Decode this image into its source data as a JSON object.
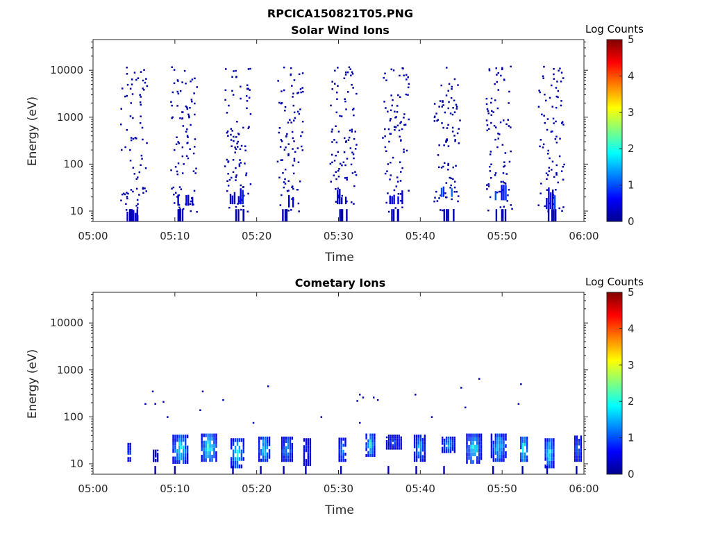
{
  "figure": {
    "title": "RPCICA150821T05.PNG"
  },
  "colormap": [
    "#00008f",
    "#0000ff",
    "#0080ff",
    "#00ffff",
    "#80ff80",
    "#ffff00",
    "#ff8000",
    "#ff0000",
    "#800000"
  ],
  "chart_data": [
    {
      "type": "heatmap",
      "title": "Solar Wind Ions",
      "xlabel": "Time",
      "ylabel": "Energy (eV)",
      "x_ticks": [
        "05:00",
        "05:10",
        "05:20",
        "05:30",
        "05:40",
        "05:50",
        "06:00"
      ],
      "x_tick_minutes": [
        0,
        10,
        20,
        30,
        40,
        50,
        60
      ],
      "xlim_minutes": [
        0,
        60
      ],
      "y_scale": "log",
      "y_ticks": [
        "10",
        "100",
        "1000",
        "10000"
      ],
      "y_tick_values": [
        10,
        100,
        1000,
        10000
      ],
      "ylim": [
        6,
        45000
      ],
      "colorbar": {
        "label": "Log Counts",
        "range": [
          0,
          5
        ],
        "ticks": [
          "0",
          "1",
          "2",
          "3",
          "4",
          "5"
        ]
      },
      "bursts": [
        {
          "t": 4.9,
          "n": 26,
          "seed": 11
        },
        {
          "t": 11.0,
          "n": 30,
          "seed": 23
        },
        {
          "t": 17.6,
          "n": 30,
          "seed": 37
        },
        {
          "t": 24.0,
          "n": 30,
          "seed": 41
        },
        {
          "t": 30.5,
          "n": 30,
          "seed": 53
        },
        {
          "t": 36.9,
          "n": 28,
          "seed": 67
        },
        {
          "t": 43.2,
          "n": 30,
          "seed": 71
        },
        {
          "t": 49.6,
          "n": 28,
          "seed": 83
        },
        {
          "t": 55.9,
          "n": 28,
          "seed": 97
        }
      ],
      "low_energy_blocks": [
        {
          "t0": 4.1,
          "t1": 5.5,
          "e0": 6,
          "e1": 11,
          "level": 0.3
        },
        {
          "t0": 10.3,
          "t1": 12.4,
          "e0": 13,
          "e1": 28,
          "level": 0.4
        },
        {
          "t0": 16.7,
          "t1": 18.5,
          "e0": 14,
          "e1": 33,
          "level": 0.5
        },
        {
          "t0": 23.1,
          "t1": 24.6,
          "e0": 12,
          "e1": 22,
          "level": 0.4
        },
        {
          "t0": 29.8,
          "t1": 31.0,
          "e0": 14,
          "e1": 30,
          "level": 0.4
        },
        {
          "t0": 36.2,
          "t1": 37.8,
          "e0": 14,
          "e1": 33,
          "level": 0.4
        },
        {
          "t0": 42.5,
          "t1": 44.0,
          "e0": 20,
          "e1": 38,
          "level": 0.8
        },
        {
          "t0": 49.1,
          "t1": 50.4,
          "e0": 17,
          "e1": 38,
          "level": 0.7
        },
        {
          "t0": 55.1,
          "t1": 56.6,
          "e0": 11,
          "e1": 42,
          "level": 0.7
        }
      ]
    },
    {
      "type": "heatmap",
      "title": "Cometary Ions",
      "xlabel": "Time",
      "ylabel": "Energy (eV)",
      "x_ticks": [
        "05:00",
        "05:10",
        "05:20",
        "05:30",
        "05:40",
        "05:50",
        "06:00"
      ],
      "x_tick_minutes": [
        0,
        10,
        20,
        30,
        40,
        50,
        60
      ],
      "xlim_minutes": [
        0,
        60
      ],
      "y_scale": "log",
      "y_ticks": [
        "10",
        "100",
        "1000",
        "10000"
      ],
      "y_tick_values": [
        10,
        100,
        1000,
        10000
      ],
      "ylim": [
        6,
        45000
      ],
      "colorbar": {
        "label": "Log Counts",
        "range": [
          0,
          5
        ],
        "ticks": [
          "0",
          "1",
          "2",
          "3",
          "4",
          "5"
        ]
      },
      "blobs": [
        {
          "t0": 4.2,
          "t1": 4.8,
          "e0": 11,
          "e1": 28,
          "peak": 1.2
        },
        {
          "t0": 7.3,
          "t1": 8.1,
          "e0": 11,
          "e1": 20,
          "peak": 0.3
        },
        {
          "t0": 9.7,
          "t1": 11.7,
          "e0": 10,
          "e1": 42,
          "peak": 2.0
        },
        {
          "t0": 13.2,
          "t1": 15.3,
          "e0": 11,
          "e1": 44,
          "peak": 2.1
        },
        {
          "t0": 16.8,
          "t1": 18.5,
          "e0": 8,
          "e1": 35,
          "peak": 2.0
        },
        {
          "t0": 20.2,
          "t1": 21.8,
          "e0": 11,
          "e1": 38,
          "peak": 1.9
        },
        {
          "t0": 23.0,
          "t1": 24.4,
          "e0": 11,
          "e1": 38,
          "peak": 1.6
        },
        {
          "t0": 25.7,
          "t1": 26.7,
          "e0": 9,
          "e1": 35,
          "peak": 1.0
        },
        {
          "t0": 30.0,
          "t1": 30.9,
          "e0": 11,
          "e1": 36,
          "peak": 1.5
        },
        {
          "t0": 33.3,
          "t1": 34.6,
          "e0": 14,
          "e1": 44,
          "peak": 1.9
        },
        {
          "t0": 35.8,
          "t1": 37.8,
          "e0": 20,
          "e1": 42,
          "peak": 1.0
        },
        {
          "t0": 39.2,
          "t1": 40.6,
          "e0": 11,
          "e1": 42,
          "peak": 1.6
        },
        {
          "t0": 42.6,
          "t1": 44.3,
          "e0": 17,
          "e1": 38,
          "peak": 1.5
        },
        {
          "t0": 45.6,
          "t1": 47.6,
          "e0": 10,
          "e1": 44,
          "peak": 1.9
        },
        {
          "t0": 48.6,
          "t1": 50.6,
          "e0": 11,
          "e1": 44,
          "peak": 1.8
        },
        {
          "t0": 52.2,
          "t1": 53.3,
          "e0": 11,
          "e1": 38,
          "peak": 2.2
        },
        {
          "t0": 55.2,
          "t1": 56.4,
          "e0": 8,
          "e1": 35,
          "peak": 2.0
        },
        {
          "t0": 58.8,
          "t1": 59.7,
          "e0": 11,
          "e1": 40,
          "peak": 1.4
        }
      ],
      "sparse_points": [
        {
          "t": 6.3,
          "e": 190
        },
        {
          "t": 7.2,
          "e": 350
        },
        {
          "t": 7.5,
          "e": 190
        },
        {
          "t": 8.5,
          "e": 210
        },
        {
          "t": 9.0,
          "e": 100
        },
        {
          "t": 13.3,
          "e": 350
        },
        {
          "t": 13.0,
          "e": 140
        },
        {
          "t": 15.8,
          "e": 230
        },
        {
          "t": 19.5,
          "e": 75
        },
        {
          "t": 21.3,
          "e": 450
        },
        {
          "t": 27.8,
          "e": 100
        },
        {
          "t": 32.5,
          "e": 300
        },
        {
          "t": 32.9,
          "e": 260
        },
        {
          "t": 34.2,
          "e": 260
        },
        {
          "t": 34.7,
          "e": 230
        },
        {
          "t": 32.2,
          "e": 220
        },
        {
          "t": 32.5,
          "e": 75
        },
        {
          "t": 39.3,
          "e": 300
        },
        {
          "t": 41.3,
          "e": 100
        },
        {
          "t": 44.9,
          "e": 420
        },
        {
          "t": 45.4,
          "e": 160
        },
        {
          "t": 47.1,
          "e": 650
        },
        {
          "t": 51.9,
          "e": 190
        },
        {
          "t": 52.2,
          "e": 500
        }
      ]
    }
  ]
}
